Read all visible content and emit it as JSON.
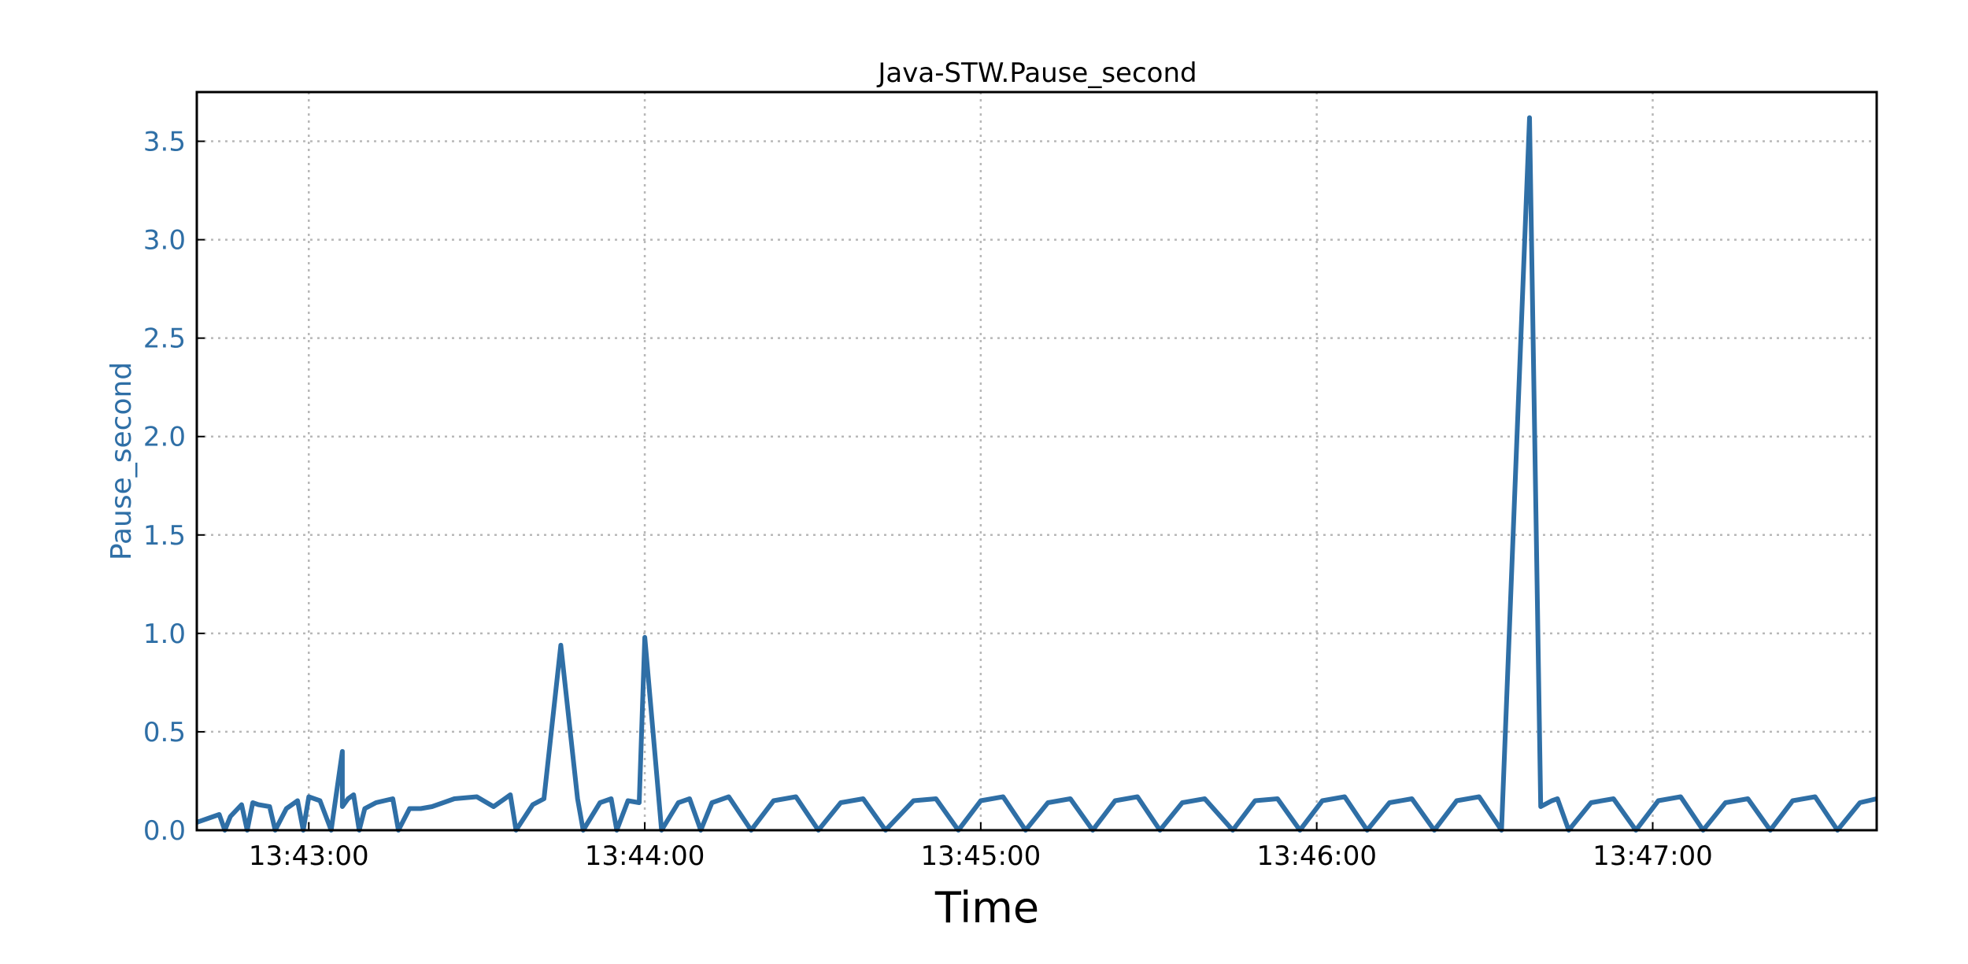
{
  "chart_data": {
    "type": "line",
    "title": "Java-STW.Pause_second",
    "xlabel": "Time",
    "ylabel": "Pause_second",
    "xlim": [
      "13:42:40",
      "13:47:40"
    ],
    "ylim": [
      0,
      3.75
    ],
    "x_ticks": [
      "13:43:00",
      "13:44:00",
      "13:45:00",
      "13:46:00",
      "13:47:00"
    ],
    "y_ticks": [
      "0.0",
      "0.5",
      "1.0",
      "1.5",
      "2.0",
      "2.5",
      "3.0",
      "3.5"
    ],
    "grid": true,
    "series_color": "#2f6fa6",
    "ytick_color": "#2f6fa6",
    "series": [
      {
        "x": [
          "13:42:40",
          "13:42:42",
          "13:42:44",
          "13:42:45",
          "13:42:46",
          "13:42:48",
          "13:42:49",
          "13:42:50",
          "13:42:51",
          "13:42:53",
          "13:42:54",
          "13:42:56",
          "13:42:58",
          "13:42:59",
          "13:43:00",
          "13:43:02",
          "13:43:04",
          "13:43:06",
          "13:43:06",
          "13:43:07",
          "13:43:08",
          "13:43:09",
          "13:43:10",
          "13:43:12",
          "13:43:15",
          "13:43:16",
          "13:43:18",
          "13:43:20",
          "13:43:22",
          "13:43:26",
          "13:43:30",
          "13:43:33",
          "13:43:36",
          "13:43:37",
          "13:43:40",
          "13:43:42",
          "13:43:45",
          "13:43:48",
          "13:43:49",
          "13:43:52",
          "13:43:54",
          "13:43:55",
          "13:43:57",
          "13:43:59",
          "13:44:00",
          "13:44:03",
          "13:44:06",
          "13:44:08",
          "13:44:10",
          "13:44:12",
          "13:44:15",
          "13:44:19",
          "13:44:23",
          "13:44:27",
          "13:44:31",
          "13:44:35",
          "13:44:39",
          "13:44:43",
          "13:44:48",
          "13:44:52",
          "13:44:56",
          "13:45:00",
          "13:45:04",
          "13:45:08",
          "13:45:12",
          "13:45:16",
          "13:45:20",
          "13:45:24",
          "13:45:28",
          "13:45:32",
          "13:45:36",
          "13:45:40",
          "13:45:45",
          "13:45:49",
          "13:45:53",
          "13:45:57",
          "13:46:01",
          "13:46:05",
          "13:46:09",
          "13:46:13",
          "13:46:17",
          "13:46:21",
          "13:46:25",
          "13:46:29",
          "13:46:33",
          "13:46:38",
          "13:46:40",
          "13:46:42",
          "13:46:43",
          "13:46:45",
          "13:46:49",
          "13:46:53",
          "13:46:57",
          "13:47:01",
          "13:47:05",
          "13:47:09",
          "13:47:13",
          "13:47:17",
          "13:47:21",
          "13:47:25",
          "13:47:29",
          "13:47:33",
          "13:47:37",
          "13:47:40"
        ],
        "y": [
          0.04,
          0.06,
          0.08,
          0.0,
          0.07,
          0.13,
          0.0,
          0.14,
          0.13,
          0.12,
          0.0,
          0.11,
          0.15,
          0.0,
          0.17,
          0.15,
          0.0,
          0.4,
          0.12,
          0.16,
          0.18,
          0.0,
          0.11,
          0.14,
          0.16,
          0.0,
          0.11,
          0.11,
          0.12,
          0.16,
          0.17,
          0.12,
          0.18,
          0.0,
          0.13,
          0.16,
          0.94,
          0.16,
          0.0,
          0.14,
          0.16,
          0.0,
          0.15,
          0.14,
          0.98,
          0.0,
          0.14,
          0.16,
          0.0,
          0.14,
          0.17,
          0.0,
          0.15,
          0.17,
          0.0,
          0.14,
          0.16,
          0.0,
          0.15,
          0.16,
          0.0,
          0.15,
          0.17,
          0.0,
          0.14,
          0.16,
          0.0,
          0.15,
          0.17,
          0.0,
          0.14,
          0.16,
          0.0,
          0.15,
          0.16,
          0.0,
          0.15,
          0.17,
          0.0,
          0.14,
          0.16,
          0.0,
          0.15,
          0.17,
          0.0,
          3.62,
          0.12,
          0.15,
          0.16,
          0.0,
          0.14,
          0.16,
          0.0,
          0.15,
          0.17,
          0.0,
          0.14,
          0.16,
          0.0,
          0.15,
          0.17,
          0.0,
          0.14,
          0.16
        ]
      }
    ]
  }
}
